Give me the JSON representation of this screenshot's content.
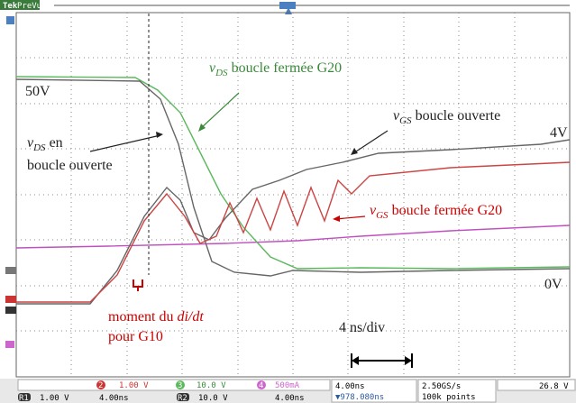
{
  "header": {
    "brand": "Tek",
    "mode": "PreVu"
  },
  "annotations": {
    "vds_closed": {
      "var": "v",
      "sub": "DS",
      "text": " boucle fermée G20"
    },
    "vds_open": {
      "var": "v",
      "sub": "DS",
      "text": " en",
      "line2": "boucle ouverte"
    },
    "vgs_open": {
      "var": "v",
      "sub": "GS",
      "text": " boucle ouverte"
    },
    "vgs_closed": {
      "var": "v",
      "sub": "GS",
      "text": " boucle fermée G20"
    },
    "level_50": "50V",
    "level_4": "4V",
    "level_0": "0V",
    "timebase": "4 ns/div",
    "didt": {
      "text": "moment du ",
      "italic": "di/dt",
      "line2": "pour G10"
    }
  },
  "status": {
    "row1": [
      {
        "ch": "2",
        "value": "1.00 V"
      },
      {
        "ch": "3",
        "value": "10.0 V"
      },
      {
        "ch": "4",
        "value": "500mA"
      }
    ],
    "row2": [
      {
        "ch": "R1",
        "value": "1.00 V",
        "time": "4.00ns"
      },
      {
        "ch": "R2",
        "value": "10.0 V",
        "time": "4.00ns"
      }
    ],
    "timediv": "4.00ns",
    "position": "▼978.080ns",
    "rate": "2.50GS/s",
    "points": "100k points",
    "trigger": "26.8 V"
  }
}
